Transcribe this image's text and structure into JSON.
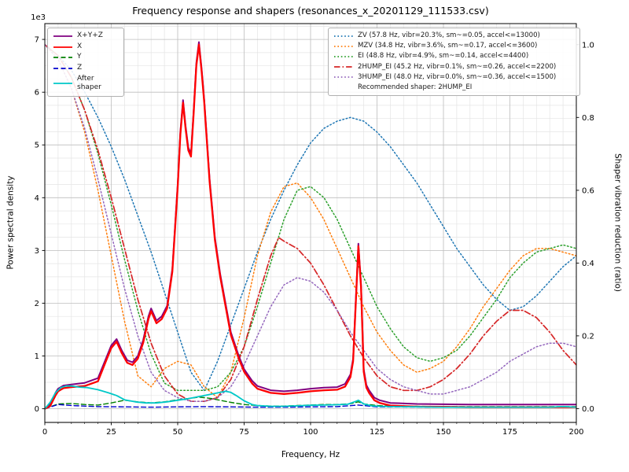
{
  "chart_data": {
    "type": "line",
    "title": "Frequency response and shapers (resonances_x_20201129_111533.csv)",
    "xlabel": "Frequency, Hz",
    "ylabel_left": "Power spectral density",
    "ylabel_right": "Shaper vibration reduction (ratio)",
    "offset_text_left": "1e3",
    "xlim": [
      0,
      200
    ],
    "x_major_ticks": [
      0,
      25,
      50,
      75,
      100,
      125,
      150,
      175,
      200
    ],
    "x_minor_step": 5,
    "ylim_left": [
      -260,
      7300
    ],
    "y_left_major_ticks": [
      0,
      1000,
      2000,
      3000,
      4000,
      5000,
      6000,
      7000
    ],
    "y_left_tick_labels": [
      "0",
      "1",
      "2",
      "3",
      "4",
      "5",
      "6",
      "7"
    ],
    "y_left_minor_step": 250,
    "ylim_right": [
      -0.038,
      1.058
    ],
    "y_right_major_ticks": [
      0,
      0.2,
      0.4,
      0.6,
      0.8,
      1.0
    ],
    "y_right_tick_labels": [
      "0.0",
      "0.2",
      "0.4",
      "0.6",
      "0.8",
      "1.0"
    ],
    "grid": {
      "major_color": "#bdbdbd",
      "minor_color": "#e4e4e4"
    },
    "series": [
      {
        "name": "zv",
        "label": "ZV",
        "axis": "right",
        "color": "#1f77b4",
        "style": "dotted",
        "width": 1.5,
        "x": [
          0,
          5,
          10,
          15,
          20,
          25,
          30,
          35,
          40,
          45,
          50,
          55,
          60,
          65,
          70,
          75,
          80,
          85,
          90,
          95,
          100,
          105,
          110,
          115,
          120,
          125,
          130,
          135,
          140,
          145,
          150,
          155,
          160,
          165,
          170,
          175,
          180,
          185,
          190,
          195,
          200
        ],
        "y": [
          1.0,
          0.97,
          0.93,
          0.87,
          0.8,
          0.72,
          0.63,
          0.53,
          0.43,
          0.32,
          0.21,
          0.1,
          0.05,
          0.13,
          0.23,
          0.33,
          0.43,
          0.52,
          0.6,
          0.67,
          0.73,
          0.77,
          0.79,
          0.8,
          0.79,
          0.76,
          0.72,
          0.67,
          0.62,
          0.56,
          0.5,
          0.44,
          0.39,
          0.34,
          0.3,
          0.27,
          0.28,
          0.31,
          0.35,
          0.39,
          0.42
        ]
      },
      {
        "name": "mzv",
        "label": "MZV",
        "axis": "right",
        "color": "#ff7f0e",
        "style": "dotted",
        "width": 1.5,
        "x": [
          0,
          5,
          10,
          15,
          20,
          25,
          30,
          35,
          40,
          45,
          50,
          55,
          60,
          65,
          70,
          75,
          80,
          85,
          90,
          95,
          100,
          105,
          110,
          115,
          120,
          125,
          130,
          135,
          140,
          145,
          150,
          155,
          160,
          165,
          170,
          175,
          180,
          185,
          190,
          195,
          200
        ],
        "y": [
          1.0,
          0.96,
          0.88,
          0.76,
          0.6,
          0.42,
          0.24,
          0.09,
          0.06,
          0.11,
          0.13,
          0.12,
          0.06,
          0.03,
          0.1,
          0.25,
          0.42,
          0.54,
          0.61,
          0.62,
          0.58,
          0.52,
          0.44,
          0.36,
          0.28,
          0.21,
          0.16,
          0.12,
          0.1,
          0.11,
          0.13,
          0.17,
          0.22,
          0.28,
          0.33,
          0.38,
          0.42,
          0.44,
          0.44,
          0.43,
          0.42
        ]
      },
      {
        "name": "ei",
        "label": "EI",
        "axis": "right",
        "color": "#2ca02c",
        "style": "dotted",
        "width": 1.5,
        "x": [
          0,
          5,
          10,
          15,
          20,
          25,
          30,
          35,
          40,
          45,
          50,
          55,
          60,
          65,
          70,
          75,
          80,
          85,
          90,
          95,
          100,
          105,
          110,
          115,
          120,
          125,
          130,
          135,
          140,
          145,
          150,
          155,
          160,
          165,
          170,
          175,
          180,
          185,
          190,
          195,
          200
        ],
        "y": [
          1.0,
          0.97,
          0.91,
          0.82,
          0.7,
          0.56,
          0.41,
          0.27,
          0.15,
          0.07,
          0.05,
          0.05,
          0.05,
          0.06,
          0.1,
          0.17,
          0.28,
          0.4,
          0.52,
          0.6,
          0.61,
          0.58,
          0.52,
          0.44,
          0.36,
          0.28,
          0.22,
          0.17,
          0.14,
          0.13,
          0.14,
          0.16,
          0.2,
          0.25,
          0.3,
          0.36,
          0.4,
          0.43,
          0.44,
          0.45,
          0.44
        ]
      },
      {
        "name": "2hump_ei",
        "label": "2HUMP_EI",
        "axis": "right",
        "color": "#d62728",
        "style": "dashdot",
        "width": 1.7,
        "x": [
          0,
          5,
          10,
          15,
          20,
          25,
          30,
          35,
          40,
          45,
          50,
          55,
          60,
          65,
          70,
          75,
          80,
          85,
          88,
          90,
          95,
          100,
          105,
          110,
          115,
          120,
          125,
          130,
          135,
          140,
          145,
          150,
          155,
          160,
          165,
          170,
          175,
          180,
          185,
          190,
          195,
          200
        ],
        "y": [
          1.0,
          0.97,
          0.91,
          0.82,
          0.71,
          0.58,
          0.44,
          0.3,
          0.18,
          0.09,
          0.04,
          0.02,
          0.02,
          0.03,
          0.08,
          0.17,
          0.3,
          0.42,
          0.47,
          0.46,
          0.44,
          0.4,
          0.34,
          0.27,
          0.2,
          0.14,
          0.09,
          0.06,
          0.05,
          0.05,
          0.06,
          0.08,
          0.11,
          0.15,
          0.2,
          0.24,
          0.27,
          0.27,
          0.25,
          0.21,
          0.16,
          0.12
        ]
      },
      {
        "name": "3hump_ei",
        "label": "3HUMP_EI",
        "axis": "right",
        "color": "#9467bd",
        "style": "dotted",
        "width": 1.5,
        "x": [
          0,
          5,
          10,
          15,
          20,
          25,
          30,
          35,
          40,
          45,
          50,
          55,
          60,
          65,
          70,
          75,
          80,
          85,
          90,
          95,
          100,
          105,
          110,
          115,
          120,
          125,
          130,
          135,
          140,
          145,
          150,
          155,
          160,
          165,
          170,
          175,
          180,
          185,
          190,
          195,
          200
        ],
        "y": [
          1.0,
          0.96,
          0.88,
          0.77,
          0.63,
          0.48,
          0.33,
          0.2,
          0.1,
          0.05,
          0.03,
          0.02,
          0.02,
          0.03,
          0.06,
          0.12,
          0.2,
          0.28,
          0.34,
          0.36,
          0.35,
          0.32,
          0.27,
          0.21,
          0.16,
          0.11,
          0.08,
          0.06,
          0.05,
          0.04,
          0.04,
          0.05,
          0.06,
          0.08,
          0.1,
          0.13,
          0.15,
          0.17,
          0.18,
          0.18,
          0.17
        ]
      },
      {
        "name": "y_psd",
        "label": "Y",
        "axis": "left",
        "color": "#008000",
        "style": "dashed",
        "width": 1.4,
        "x": [
          0,
          5,
          10,
          15,
          20,
          25,
          30,
          35,
          40,
          45,
          50,
          55,
          58,
          60,
          63,
          65,
          70,
          75,
          80,
          85,
          90,
          95,
          100,
          105,
          110,
          115,
          118,
          120,
          125,
          130,
          140,
          150,
          160,
          170,
          180,
          190,
          200
        ],
        "y": [
          0,
          90,
          100,
          80,
          70,
          110,
          160,
          130,
          110,
          130,
          170,
          200,
          220,
          210,
          190,
          170,
          120,
          80,
          60,
          50,
          50,
          60,
          70,
          80,
          80,
          95,
          130,
          90,
          60,
          50,
          45,
          40,
          40,
          40,
          40,
          40,
          40
        ]
      },
      {
        "name": "z_psd",
        "label": "Z",
        "axis": "left",
        "color": "#0000cd",
        "style": "dashed",
        "width": 1.4,
        "x": [
          0,
          5,
          10,
          20,
          30,
          40,
          50,
          60,
          70,
          80,
          90,
          100,
          110,
          118,
          125,
          150,
          175,
          200
        ],
        "y": [
          0,
          80,
          60,
          40,
          35,
          30,
          35,
          40,
          35,
          30,
          30,
          35,
          40,
          70,
          35,
          30,
          30,
          30
        ]
      },
      {
        "name": "xyz_psd",
        "label": "X+Y+Z",
        "axis": "left",
        "color": "#800080",
        "style": "solid",
        "width": 2.0,
        "x": [
          0,
          2,
          4,
          5,
          7,
          10,
          15,
          20,
          23,
          25,
          27,
          29,
          31,
          33,
          35,
          37,
          39,
          40,
          42,
          44,
          46,
          48,
          50,
          51,
          52,
          53,
          54,
          55,
          56,
          57,
          58,
          59,
          60,
          62,
          64,
          66,
          68,
          70,
          73,
          75,
          78,
          80,
          85,
          90,
          95,
          100,
          105,
          110,
          113,
          115,
          116,
          117,
          118,
          119,
          120,
          121,
          122,
          124,
          126,
          130,
          140,
          150,
          160,
          170,
          180,
          190,
          200
        ],
        "y": [
          0,
          80,
          300,
          380,
          440,
          460,
          490,
          580,
          950,
          1200,
          1320,
          1100,
          920,
          880,
          1000,
          1300,
          1750,
          1900,
          1670,
          1750,
          1950,
          2650,
          4250,
          5250,
          5850,
          5350,
          4950,
          4830,
          5650,
          6550,
          6950,
          6450,
          5850,
          4350,
          3250,
          2550,
          2000,
          1450,
          1000,
          750,
          530,
          430,
          350,
          330,
          350,
          380,
          400,
          410,
          470,
          650,
          950,
          2050,
          3130,
          2350,
          750,
          450,
          350,
          210,
          160,
          110,
          90,
          85,
          80,
          80,
          80,
          80,
          80
        ]
      },
      {
        "name": "x_psd",
        "label": "X",
        "axis": "left",
        "color": "#ff0000",
        "style": "solid",
        "width": 2.3,
        "x": [
          0,
          2,
          4,
          5,
          7,
          10,
          15,
          20,
          23,
          25,
          27,
          29,
          31,
          33,
          35,
          37,
          39,
          40,
          42,
          44,
          46,
          48,
          50,
          51,
          52,
          53,
          54,
          55,
          56,
          57,
          58,
          59,
          60,
          62,
          64,
          66,
          68,
          70,
          73,
          75,
          78,
          80,
          85,
          90,
          95,
          100,
          105,
          110,
          113,
          115,
          116,
          117,
          118,
          119,
          120,
          121,
          122,
          124,
          126,
          130,
          140,
          150,
          160,
          170,
          180,
          190,
          200
        ],
        "y": [
          0,
          50,
          250,
          330,
          390,
          410,
          430,
          520,
          900,
          1150,
          1270,
          1050,
          870,
          830,
          950,
          1250,
          1700,
          1850,
          1620,
          1700,
          1900,
          2600,
          4200,
          5200,
          5800,
          5300,
          4900,
          4780,
          5600,
          6500,
          6900,
          6400,
          5800,
          4300,
          3200,
          2500,
          1950,
          1400,
          950,
          700,
          480,
          380,
          300,
          280,
          300,
          330,
          350,
          360,
          420,
          600,
          900,
          2000,
          3080,
          2300,
          700,
          400,
          300,
          160,
          110,
          60,
          40,
          35,
          30,
          30,
          30,
          30,
          30
        ]
      },
      {
        "name": "after_shaper",
        "label": "After shaper",
        "axis": "left",
        "color": "#00c8c8",
        "style": "solid",
        "width": 1.8,
        "x": [
          0,
          2,
          4,
          6,
          8,
          10,
          13,
          16,
          20,
          24,
          27,
          30,
          34,
          38,
          42,
          46,
          50,
          54,
          58,
          61,
          64,
          66,
          68,
          70,
          72,
          75,
          78,
          80,
          85,
          90,
          95,
          100,
          105,
          110,
          114,
          117,
          118,
          120,
          123,
          126,
          130,
          140,
          150,
          160,
          170,
          180,
          190,
          195,
          200
        ],
        "y": [
          0,
          120,
          300,
          400,
          430,
          430,
          410,
          400,
          360,
          300,
          250,
          170,
          130,
          110,
          110,
          130,
          160,
          190,
          230,
          260,
          290,
          310,
          330,
          310,
          250,
          150,
          80,
          60,
          45,
          45,
          55,
          65,
          70,
          75,
          85,
          140,
          160,
          90,
          55,
          45,
          40,
          35,
          30,
          30,
          30,
          30,
          30,
          40,
          30
        ]
      }
    ],
    "legend_left": {
      "items": [
        {
          "label": "X+Y+Z",
          "color": "#800080",
          "style": "solid"
        },
        {
          "label": "X",
          "color": "#ff0000",
          "style": "solid"
        },
        {
          "label": "Y",
          "color": "#008000",
          "style": "dashed"
        },
        {
          "label": "Z",
          "color": "#0000cd",
          "style": "dashed"
        },
        {
          "label": "After shaper",
          "color": "#00c8c8",
          "style": "solid"
        }
      ]
    },
    "legend_right": {
      "items": [
        {
          "label": "ZV (57.8 Hz, vibr=20.3%, sm~=0.05, accel<=13000)",
          "color": "#1f77b4",
          "style": "dotted"
        },
        {
          "label": "MZV (34.8 Hz, vibr=3.6%, sm~=0.17, accel<=3600)",
          "color": "#ff7f0e",
          "style": "dotted"
        },
        {
          "label": "EI (48.8 Hz, vibr=4.9%, sm~=0.14, accel<=4400)",
          "color": "#2ca02c",
          "style": "dotted"
        },
        {
          "label": "2HUMP_EI (45.2 Hz, vibr=0.1%, sm~=0.26, accel<=2200)",
          "color": "#d62728",
          "style": "dashdot"
        },
        {
          "label": "3HUMP_EI (48.0 Hz, vibr=0.0%, sm~=0.36, accel<=1500)",
          "color": "#9467bd",
          "style": "dotted"
        }
      ],
      "note": "Recommended shaper: 2HUMP_EI"
    }
  }
}
